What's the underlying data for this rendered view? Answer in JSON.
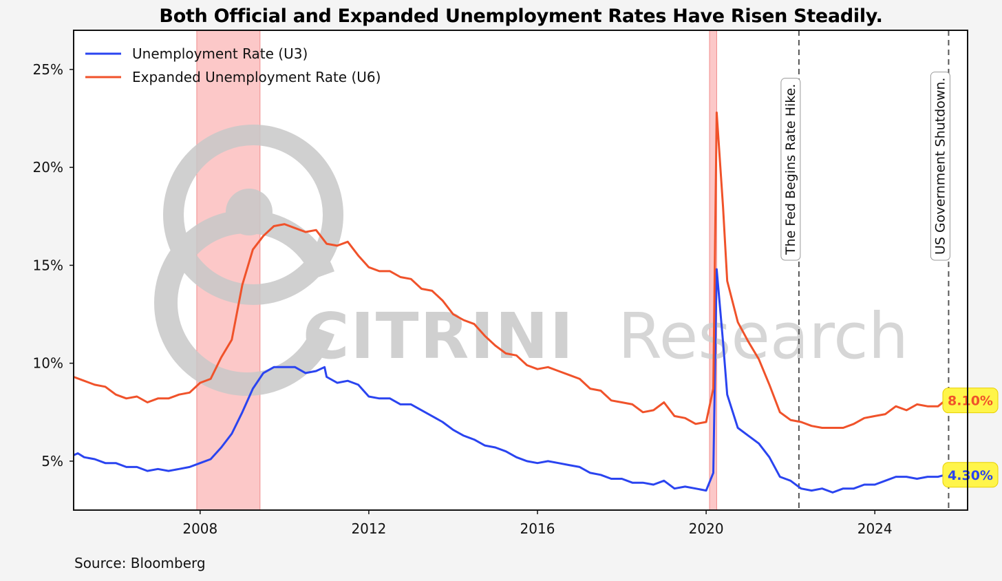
{
  "chart_data": {
    "type": "line",
    "title": "Both Official and Expanded Unemployment Rates Have Risen Steadily.",
    "source": "Source: Bloomberg",
    "watermark": "CITRINI Research",
    "xlim": [
      2005.0,
      2026.2
    ],
    "ylim": [
      2.5,
      27.0
    ],
    "x_ticks": [
      2008,
      2012,
      2016,
      2020,
      2024
    ],
    "y_ticks": [
      5,
      10,
      15,
      20,
      25
    ],
    "y_tick_labels": [
      "5%",
      "10%",
      "15%",
      "20%",
      "25%"
    ],
    "grid": false,
    "legend_position": "top-left",
    "recession_shading": [
      {
        "start": 2007.92,
        "end": 2009.42
      },
      {
        "start": 2020.08,
        "end": 2020.25
      }
    ],
    "events": [
      {
        "x": 2022.2,
        "label": "The Fed Begins Rate Hike."
      },
      {
        "x": 2025.75,
        "label": "US Government Shutdown."
      }
    ],
    "series": [
      {
        "name": "Unemployment Rate (U3)",
        "color": "#2a44f0",
        "last_label": "4.30%",
        "points": [
          [
            2005.0,
            5.3
          ],
          [
            2005.1,
            5.4
          ],
          [
            2005.25,
            5.2
          ],
          [
            2005.5,
            5.1
          ],
          [
            2005.75,
            4.9
          ],
          [
            2006.0,
            4.9
          ],
          [
            2006.25,
            4.7
          ],
          [
            2006.5,
            4.7
          ],
          [
            2006.75,
            4.5
          ],
          [
            2007.0,
            4.6
          ],
          [
            2007.25,
            4.5
          ],
          [
            2007.5,
            4.6
          ],
          [
            2007.75,
            4.7
          ],
          [
            2008.0,
            4.9
          ],
          [
            2008.25,
            5.1
          ],
          [
            2008.5,
            5.7
          ],
          [
            2008.75,
            6.4
          ],
          [
            2009.0,
            7.5
          ],
          [
            2009.25,
            8.7
          ],
          [
            2009.5,
            9.5
          ],
          [
            2009.75,
            9.8
          ],
          [
            2010.0,
            9.8
          ],
          [
            2010.25,
            9.8
          ],
          [
            2010.5,
            9.5
          ],
          [
            2010.75,
            9.6
          ],
          [
            2010.95,
            9.8
          ],
          [
            2011.0,
            9.3
          ],
          [
            2011.25,
            9.0
          ],
          [
            2011.5,
            9.1
          ],
          [
            2011.75,
            8.9
          ],
          [
            2012.0,
            8.3
          ],
          [
            2012.25,
            8.2
          ],
          [
            2012.5,
            8.2
          ],
          [
            2012.75,
            7.9
          ],
          [
            2013.0,
            7.9
          ],
          [
            2013.25,
            7.6
          ],
          [
            2013.5,
            7.3
          ],
          [
            2013.75,
            7.0
          ],
          [
            2014.0,
            6.6
          ],
          [
            2014.25,
            6.3
          ],
          [
            2014.5,
            6.1
          ],
          [
            2014.75,
            5.8
          ],
          [
            2015.0,
            5.7
          ],
          [
            2015.25,
            5.5
          ],
          [
            2015.5,
            5.2
          ],
          [
            2015.75,
            5.0
          ],
          [
            2016.0,
            4.9
          ],
          [
            2016.25,
            5.0
          ],
          [
            2016.5,
            4.9
          ],
          [
            2016.75,
            4.8
          ],
          [
            2017.0,
            4.7
          ],
          [
            2017.25,
            4.4
          ],
          [
            2017.5,
            4.3
          ],
          [
            2017.75,
            4.1
          ],
          [
            2018.0,
            4.1
          ],
          [
            2018.25,
            3.9
          ],
          [
            2018.5,
            3.9
          ],
          [
            2018.75,
            3.8
          ],
          [
            2019.0,
            4.0
          ],
          [
            2019.25,
            3.6
          ],
          [
            2019.5,
            3.7
          ],
          [
            2019.75,
            3.6
          ],
          [
            2020.0,
            3.5
          ],
          [
            2020.17,
            4.4
          ],
          [
            2020.25,
            14.8
          ],
          [
            2020.4,
            11.1
          ],
          [
            2020.5,
            8.4
          ],
          [
            2020.75,
            6.7
          ],
          [
            2021.0,
            6.3
          ],
          [
            2021.25,
            5.9
          ],
          [
            2021.5,
            5.2
          ],
          [
            2021.75,
            4.2
          ],
          [
            2022.0,
            4.0
          ],
          [
            2022.25,
            3.6
          ],
          [
            2022.5,
            3.5
          ],
          [
            2022.75,
            3.6
          ],
          [
            2023.0,
            3.4
          ],
          [
            2023.25,
            3.6
          ],
          [
            2023.5,
            3.6
          ],
          [
            2023.75,
            3.8
          ],
          [
            2024.0,
            3.8
          ],
          [
            2024.25,
            4.0
          ],
          [
            2024.5,
            4.2
          ],
          [
            2024.75,
            4.2
          ],
          [
            2025.0,
            4.1
          ],
          [
            2025.25,
            4.2
          ],
          [
            2025.5,
            4.2
          ],
          [
            2025.67,
            4.3
          ]
        ]
      },
      {
        "name": "Expanded Unemployment Rate (U6)",
        "color": "#f0522a",
        "last_label": "8.10%",
        "points": [
          [
            2005.0,
            9.3
          ],
          [
            2005.25,
            9.1
          ],
          [
            2005.5,
            8.9
          ],
          [
            2005.75,
            8.8
          ],
          [
            2006.0,
            8.4
          ],
          [
            2006.25,
            8.2
          ],
          [
            2006.5,
            8.3
          ],
          [
            2006.75,
            8.0
          ],
          [
            2007.0,
            8.2
          ],
          [
            2007.25,
            8.2
          ],
          [
            2007.5,
            8.4
          ],
          [
            2007.75,
            8.5
          ],
          [
            2008.0,
            9.0
          ],
          [
            2008.25,
            9.2
          ],
          [
            2008.5,
            10.3
          ],
          [
            2008.75,
            11.2
          ],
          [
            2009.0,
            14.0
          ],
          [
            2009.25,
            15.8
          ],
          [
            2009.5,
            16.5
          ],
          [
            2009.75,
            17.0
          ],
          [
            2010.0,
            17.1
          ],
          [
            2010.25,
            16.9
          ],
          [
            2010.5,
            16.7
          ],
          [
            2010.75,
            16.8
          ],
          [
            2011.0,
            16.1
          ],
          [
            2011.25,
            16.0
          ],
          [
            2011.5,
            16.2
          ],
          [
            2011.75,
            15.5
          ],
          [
            2012.0,
            14.9
          ],
          [
            2012.25,
            14.7
          ],
          [
            2012.5,
            14.7
          ],
          [
            2012.75,
            14.4
          ],
          [
            2013.0,
            14.3
          ],
          [
            2013.25,
            13.8
          ],
          [
            2013.5,
            13.7
          ],
          [
            2013.75,
            13.2
          ],
          [
            2014.0,
            12.5
          ],
          [
            2014.25,
            12.2
          ],
          [
            2014.5,
            12.0
          ],
          [
            2014.75,
            11.4
          ],
          [
            2015.0,
            10.9
          ],
          [
            2015.25,
            10.5
          ],
          [
            2015.5,
            10.4
          ],
          [
            2015.75,
            9.9
          ],
          [
            2016.0,
            9.7
          ],
          [
            2016.25,
            9.8
          ],
          [
            2016.5,
            9.6
          ],
          [
            2016.75,
            9.4
          ],
          [
            2017.0,
            9.2
          ],
          [
            2017.25,
            8.7
          ],
          [
            2017.5,
            8.6
          ],
          [
            2017.75,
            8.1
          ],
          [
            2018.0,
            8.0
          ],
          [
            2018.25,
            7.9
          ],
          [
            2018.5,
            7.5
          ],
          [
            2018.75,
            7.6
          ],
          [
            2019.0,
            8.0
          ],
          [
            2019.25,
            7.3
          ],
          [
            2019.5,
            7.2
          ],
          [
            2019.75,
            6.9
          ],
          [
            2020.0,
            7.0
          ],
          [
            2020.17,
            8.7
          ],
          [
            2020.25,
            22.8
          ],
          [
            2020.4,
            18.0
          ],
          [
            2020.5,
            14.2
          ],
          [
            2020.75,
            12.1
          ],
          [
            2021.0,
            11.1
          ],
          [
            2021.25,
            10.2
          ],
          [
            2021.5,
            8.9
          ],
          [
            2021.75,
            7.5
          ],
          [
            2022.0,
            7.1
          ],
          [
            2022.25,
            7.0
          ],
          [
            2022.5,
            6.8
          ],
          [
            2022.75,
            6.7
          ],
          [
            2023.0,
            6.7
          ],
          [
            2023.25,
            6.7
          ],
          [
            2023.5,
            6.9
          ],
          [
            2023.75,
            7.2
          ],
          [
            2024.0,
            7.3
          ],
          [
            2024.25,
            7.4
          ],
          [
            2024.5,
            7.8
          ],
          [
            2024.75,
            7.6
          ],
          [
            2025.0,
            7.9
          ],
          [
            2025.25,
            7.8
          ],
          [
            2025.5,
            7.8
          ],
          [
            2025.67,
            8.1
          ]
        ]
      }
    ]
  }
}
